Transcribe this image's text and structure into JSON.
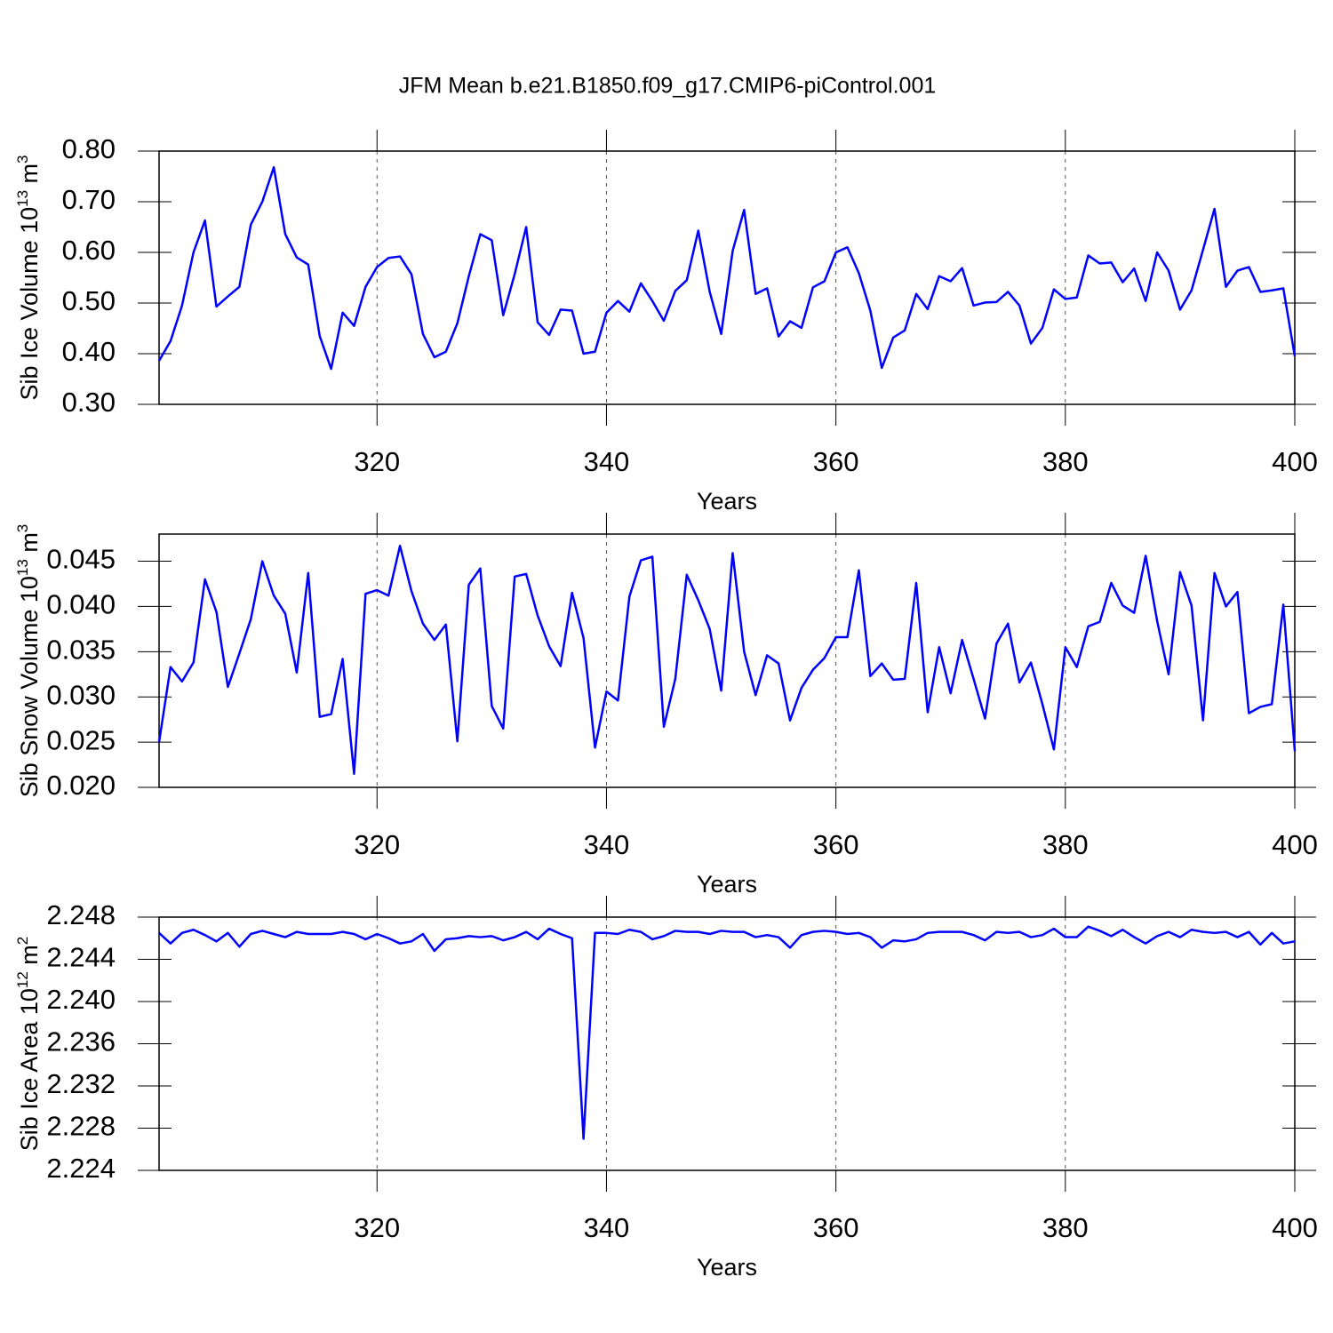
{
  "chart_data": [
    {
      "type": "line",
      "title": "JFM Mean b.e21.B1850.f09_g17.CMIP6-piControl.001",
      "ylabel": [
        "Sib Ice Volume 10",
        "13",
        " m",
        "3"
      ],
      "xlabel": "Years",
      "color": "#0000ff",
      "grid": "x",
      "xlim": [
        301,
        400
      ],
      "xticks": [
        320,
        340,
        360,
        380,
        400
      ],
      "ylim": [
        0.3,
        0.8
      ],
      "yticks": [
        {
          "value": 0.3,
          "label": "0.30"
        },
        {
          "value": 0.4,
          "label": "0.40"
        },
        {
          "value": 0.5,
          "label": "0.50"
        },
        {
          "value": 0.6,
          "label": "0.60"
        },
        {
          "value": 0.7,
          "label": "0.70"
        },
        {
          "value": 0.8,
          "label": "0.80"
        }
      ],
      "x": [
        301,
        302,
        303,
        304,
        305,
        306,
        307,
        308,
        309,
        310,
        311,
        312,
        313,
        314,
        315,
        316,
        317,
        318,
        319,
        320,
        321,
        322,
        323,
        324,
        325,
        326,
        327,
        328,
        329,
        330,
        331,
        332,
        333,
        334,
        335,
        336,
        337,
        338,
        339,
        340,
        341,
        342,
        343,
        344,
        345,
        346,
        347,
        348,
        349,
        350,
        351,
        352,
        353,
        354,
        355,
        356,
        357,
        358,
        359,
        360,
        361,
        362,
        363,
        364,
        365,
        366,
        367,
        368,
        369,
        370,
        371,
        372,
        373,
        374,
        375,
        376,
        377,
        378,
        379,
        380,
        381,
        382,
        383,
        384,
        385,
        386,
        387,
        388,
        389,
        390,
        391,
        392,
        393,
        394,
        395,
        396,
        397,
        398,
        399,
        400
      ],
      "values": [
        0.386,
        0.425,
        0.495,
        0.6,
        0.663,
        0.493,
        0.513,
        0.532,
        0.655,
        0.7,
        0.768,
        0.636,
        0.59,
        0.576,
        0.435,
        0.37,
        0.481,
        0.455,
        0.532,
        0.571,
        0.589,
        0.592,
        0.557,
        0.439,
        0.393,
        0.404,
        0.46,
        0.553,
        0.636,
        0.624,
        0.476,
        0.557,
        0.65,
        0.462,
        0.437,
        0.487,
        0.485,
        0.4,
        0.404,
        0.481,
        0.504,
        0.483,
        0.539,
        0.504,
        0.465,
        0.524,
        0.545,
        0.643,
        0.522,
        0.439,
        0.603,
        0.684,
        0.518,
        0.529,
        0.434,
        0.464,
        0.451,
        0.531,
        0.543,
        0.6,
        0.61,
        0.559,
        0.485,
        0.372,
        0.432,
        0.446,
        0.518,
        0.488,
        0.553,
        0.543,
        0.569,
        0.495,
        0.501,
        0.502,
        0.522,
        0.495,
        0.42,
        0.451,
        0.527,
        0.508,
        0.511,
        0.594,
        0.578,
        0.58,
        0.541,
        0.568,
        0.504,
        0.6,
        0.564,
        0.487,
        0.525,
        0.605,
        0.686,
        0.532,
        0.564,
        0.571,
        0.522,
        0.525,
        0.529,
        0.395
      ]
    },
    {
      "type": "line",
      "ylabel": [
        "Sib Snow Volume 10",
        "13",
        " m",
        "3"
      ],
      "xlabel": "Years",
      "color": "#0000ff",
      "grid": "x",
      "xlim": [
        301,
        400
      ],
      "xticks": [
        320,
        340,
        360,
        380,
        400
      ],
      "ylim": [
        0.02,
        0.048
      ],
      "yticks": [
        {
          "value": 0.02,
          "label": "0.020"
        },
        {
          "value": 0.025,
          "label": "0.025"
        },
        {
          "value": 0.03,
          "label": "0.030"
        },
        {
          "value": 0.035,
          "label": "0.035"
        },
        {
          "value": 0.04,
          "label": "0.040"
        },
        {
          "value": 0.045,
          "label": "0.045"
        }
      ],
      "x": [
        301,
        302,
        303,
        304,
        305,
        306,
        307,
        308,
        309,
        310,
        311,
        312,
        313,
        314,
        315,
        316,
        317,
        318,
        319,
        320,
        321,
        322,
        323,
        324,
        325,
        326,
        327,
        328,
        329,
        330,
        331,
        332,
        333,
        334,
        335,
        336,
        337,
        338,
        339,
        340,
        341,
        342,
        343,
        344,
        345,
        346,
        347,
        348,
        349,
        350,
        351,
        352,
        353,
        354,
        355,
        356,
        357,
        358,
        359,
        360,
        361,
        362,
        363,
        364,
        365,
        366,
        367,
        368,
        369,
        370,
        371,
        372,
        373,
        374,
        375,
        376,
        377,
        378,
        379,
        380,
        381,
        382,
        383,
        384,
        385,
        386,
        387,
        388,
        389,
        390,
        391,
        392,
        393,
        394,
        395,
        396,
        397,
        398,
        399,
        400
      ],
      "values": [
        0.025,
        0.0333,
        0.0317,
        0.0338,
        0.043,
        0.0394,
        0.0311,
        0.0348,
        0.0386,
        0.045,
        0.0412,
        0.0392,
        0.0327,
        0.0437,
        0.0278,
        0.0281,
        0.0342,
        0.0215,
        0.0414,
        0.0418,
        0.0412,
        0.0467,
        0.0417,
        0.0381,
        0.0363,
        0.038,
        0.0251,
        0.0424,
        0.0442,
        0.029,
        0.0265,
        0.0433,
        0.0436,
        0.039,
        0.0356,
        0.0334,
        0.0415,
        0.0365,
        0.0244,
        0.0306,
        0.0296,
        0.0411,
        0.0451,
        0.0455,
        0.0267,
        0.032,
        0.0435,
        0.0407,
        0.0375,
        0.0307,
        0.0459,
        0.035,
        0.0302,
        0.0346,
        0.0337,
        0.0274,
        0.031,
        0.033,
        0.0343,
        0.0366,
        0.0366,
        0.044,
        0.0323,
        0.0337,
        0.0319,
        0.032,
        0.0426,
        0.0283,
        0.0355,
        0.0304,
        0.0363,
        0.032,
        0.0276,
        0.0359,
        0.0381,
        0.0316,
        0.0338,
        0.0292,
        0.0242,
        0.0355,
        0.0333,
        0.0378,
        0.0383,
        0.0426,
        0.0401,
        0.0393,
        0.0456,
        0.0384,
        0.0325,
        0.0438,
        0.0401,
        0.0274,
        0.0437,
        0.04,
        0.0416,
        0.0282,
        0.0289,
        0.0292,
        0.0402,
        0.024
      ]
    },
    {
      "type": "line",
      "ylabel": [
        "Sib Ice Area 10",
        "12",
        " m",
        "2"
      ],
      "xlabel": "Years",
      "color": "#0000ff",
      "grid": "x",
      "xlim": [
        301,
        400
      ],
      "xticks": [
        320,
        340,
        360,
        380,
        400
      ],
      "ylim": [
        2.224,
        2.248
      ],
      "yticks": [
        2.224,
        2.228,
        2.232,
        2.236,
        {
          "value": 2.24,
          "label": "2.240"
        },
        2.244,
        2.248
      ],
      "x": [
        301,
        302,
        303,
        304,
        305,
        306,
        307,
        308,
        309,
        310,
        311,
        312,
        313,
        314,
        315,
        316,
        317,
        318,
        319,
        320,
        321,
        322,
        323,
        324,
        325,
        326,
        327,
        328,
        329,
        330,
        331,
        332,
        333,
        334,
        335,
        336,
        337,
        338,
        339,
        340,
        341,
        342,
        343,
        344,
        345,
        346,
        347,
        348,
        349,
        350,
        351,
        352,
        353,
        354,
        355,
        356,
        357,
        358,
        359,
        360,
        361,
        362,
        363,
        364,
        365,
        366,
        367,
        368,
        369,
        370,
        371,
        372,
        373,
        374,
        375,
        376,
        377,
        378,
        379,
        380,
        381,
        382,
        383,
        384,
        385,
        386,
        387,
        388,
        389,
        390,
        391,
        392,
        393,
        394,
        395,
        396,
        397,
        398,
        399,
        400
      ],
      "values": [
        2.2465,
        2.2455,
        2.2465,
        2.2468,
        2.2463,
        2.2457,
        2.2465,
        2.2452,
        2.2464,
        2.2467,
        2.2464,
        2.2461,
        2.2466,
        2.2464,
        2.2464,
        2.2464,
        2.2466,
        2.2464,
        2.2459,
        2.2464,
        2.246,
        2.2455,
        2.2457,
        2.2464,
        2.2448,
        2.2459,
        2.246,
        2.2462,
        2.2461,
        2.2462,
        2.2458,
        2.2461,
        2.2466,
        2.2459,
        2.2469,
        2.2464,
        2.246,
        2.227,
        2.2465,
        2.2465,
        2.2464,
        2.2468,
        2.2466,
        2.2459,
        2.2462,
        2.2467,
        2.2466,
        2.2466,
        2.2464,
        2.2467,
        2.2466,
        2.2466,
        2.2461,
        2.2463,
        2.2461,
        2.2451,
        2.2463,
        2.2466,
        2.2467,
        2.2466,
        2.2464,
        2.2465,
        2.2461,
        2.2451,
        2.2458,
        2.2457,
        2.2459,
        2.2465,
        2.2466,
        2.2466,
        2.2466,
        2.2463,
        2.2458,
        2.2466,
        2.2465,
        2.2466,
        2.2461,
        2.2463,
        2.2469,
        2.2461,
        2.2461,
        2.2471,
        2.2467,
        2.2462,
        2.2468,
        2.2461,
        2.2455,
        2.2462,
        2.2466,
        2.2461,
        2.2468,
        2.2466,
        2.2465,
        2.2466,
        2.2461,
        2.2466,
        2.2454,
        2.2465,
        2.2455,
        2.2457
      ]
    }
  ]
}
